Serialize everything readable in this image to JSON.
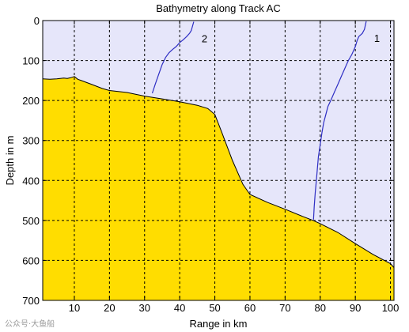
{
  "chart_data": {
    "type": "area",
    "title": "Bathymetry along Track AC",
    "xlabel": "Range in km",
    "ylabel": "Depth in m",
    "xlim": [
      1,
      101
    ],
    "ylim": [
      0,
      700
    ],
    "y_reversed": true,
    "grid": true,
    "grid_style": "dashed",
    "x_ticks": [
      10,
      20,
      30,
      40,
      50,
      60,
      70,
      80,
      90,
      100
    ],
    "y_ticks": [
      0,
      100,
      200,
      300,
      400,
      500,
      600,
      700
    ],
    "colors": {
      "seafloor": "#ffdd00",
      "water": "#e6e6fa",
      "tracks": "#2e2ec4",
      "outline": "#000000"
    },
    "seafloor": {
      "x": [
        1,
        3,
        5,
        7,
        8,
        9,
        10,
        11,
        12,
        15,
        18,
        20,
        25,
        30,
        35,
        40,
        45,
        48,
        50,
        52,
        55,
        58,
        60,
        65,
        70,
        75,
        78,
        80,
        85,
        90,
        95,
        100,
        101
      ],
      "depth": [
        146,
        147,
        146,
        144,
        145,
        143,
        140,
        147,
        150,
        160,
        170,
        175,
        180,
        189,
        196,
        203,
        212,
        220,
        235,
        280,
        350,
        410,
        435,
        455,
        472,
        490,
        500,
        508,
        530,
        558,
        585,
        608,
        618
      ]
    },
    "series": [
      {
        "name": "1",
        "x": [
          78.1,
          78.3,
          78.6,
          78.9,
          79.2,
          79.5,
          80.0,
          80.5,
          81.0,
          81.6,
          82.2,
          83.0,
          84.0,
          85.0,
          86.0,
          87.0,
          88.0,
          89.0,
          90.0,
          90.5,
          91.0,
          92.0,
          92.6,
          92.9,
          93.1
        ],
        "depth": [
          498,
          465,
          430,
          400,
          370,
          340,
          310,
          280,
          255,
          235,
          215,
          200,
          180,
          160,
          140,
          120,
          100,
          85,
          65,
          50,
          40,
          32,
          22,
          10,
          2
        ]
      },
      {
        "name": "2",
        "x": [
          32.2,
          33.0,
          34.0,
          35.0,
          36.0,
          37.0,
          38.0,
          39.0,
          40.0,
          41.0,
          42.0,
          42.8,
          43.3,
          43.7,
          44.0
        ],
        "depth": [
          182,
          160,
          135,
          110,
          92,
          80,
          72,
          65,
          55,
          48,
          40,
          32,
          25,
          12,
          3
        ]
      }
    ]
  },
  "watermark": "公众号·大鱼船"
}
